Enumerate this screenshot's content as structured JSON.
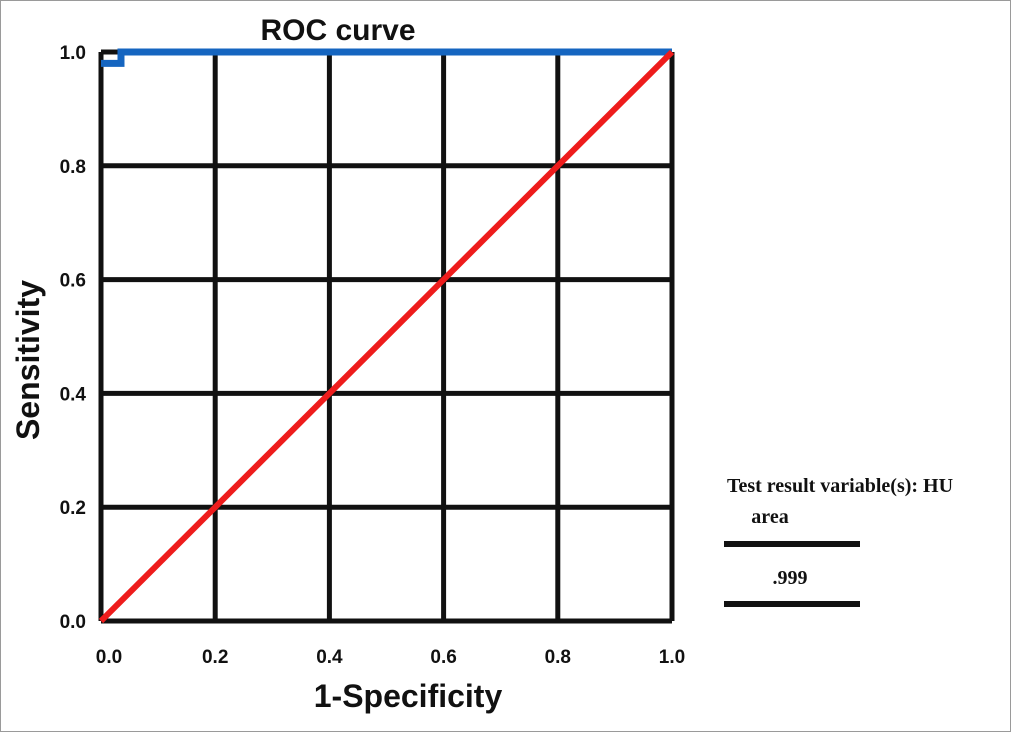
{
  "chart_data": {
    "type": "line",
    "title": "ROC curve",
    "xlabel": "1-Specificity",
    "ylabel": "Sensitivity",
    "xlim": [
      0,
      1
    ],
    "ylim": [
      0,
      1
    ],
    "x_ticks": [
      "0.0",
      "0.2",
      "0.4",
      "0.6",
      "0.8",
      "1.0"
    ],
    "y_ticks": [
      "0.0",
      "0.2",
      "0.4",
      "0.6",
      "0.8",
      "1.0"
    ],
    "grid": true,
    "series": [
      {
        "color": "#1565c0",
        "points": [
          [
            0,
            0.98
          ],
          [
            0.035,
            0.98
          ],
          [
            0.035,
            1.0
          ],
          [
            1.0,
            1.0
          ]
        ]
      },
      {
        "color": "#ee1c1c",
        "points": [
          [
            0,
            0
          ],
          [
            1,
            1
          ]
        ]
      }
    ]
  },
  "side_table": {
    "header_line1": "Test result variable(s): HU",
    "header_line2": "area",
    "value": ".999"
  }
}
